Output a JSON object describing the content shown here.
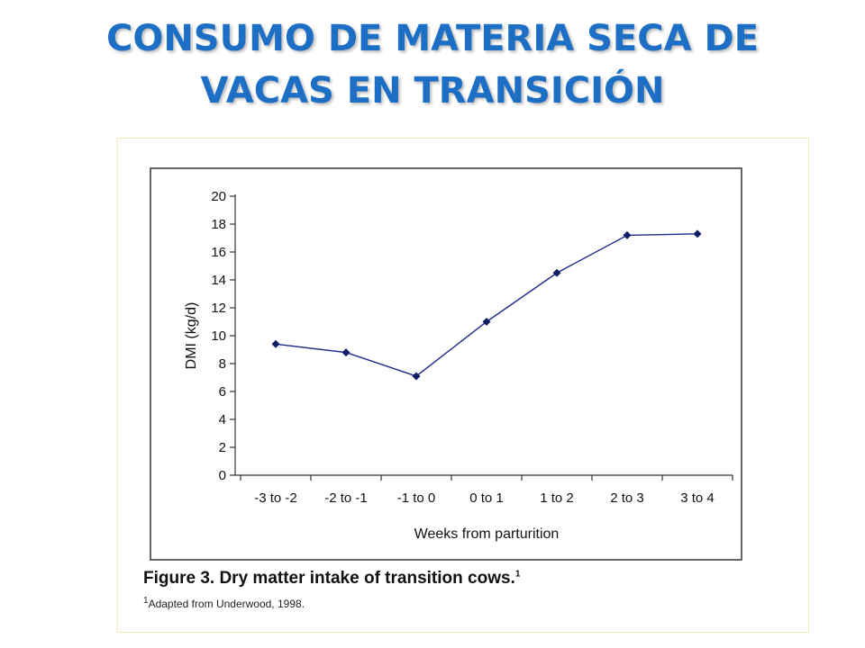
{
  "slide": {
    "title_line1": "CONSUMO DE MATERIA SECA DE",
    "title_line2": "VACAS EN TRANSICIÓN"
  },
  "figure": {
    "caption": "Figure 3. Dry matter intake of transition cows.",
    "caption_sup": "1",
    "note_sup": "1",
    "note": "Adapted from Underwood, 1998."
  },
  "colors": {
    "title": "#1c6fc4",
    "line": "#1f2a8a",
    "marker": "#101e66"
  },
  "chart_data": {
    "type": "line",
    "categories": [
      "-3 to -2",
      "-2 to -1",
      "-1 to 0",
      "0 to 1",
      "1 to 2",
      "2 to 3",
      "3 to 4"
    ],
    "series": [
      {
        "values": [
          9.4,
          8.8,
          7.1,
          11.0,
          14.5,
          17.2,
          17.3
        ]
      }
    ],
    "xlabel": "Weeks from parturition",
    "ylabel": "DMI (kg/d)",
    "ylim": [
      0,
      20
    ],
    "yticks": [
      0,
      2,
      4,
      6,
      8,
      10,
      12,
      14,
      16,
      18,
      20
    ],
    "grid": false,
    "legend": "none"
  }
}
